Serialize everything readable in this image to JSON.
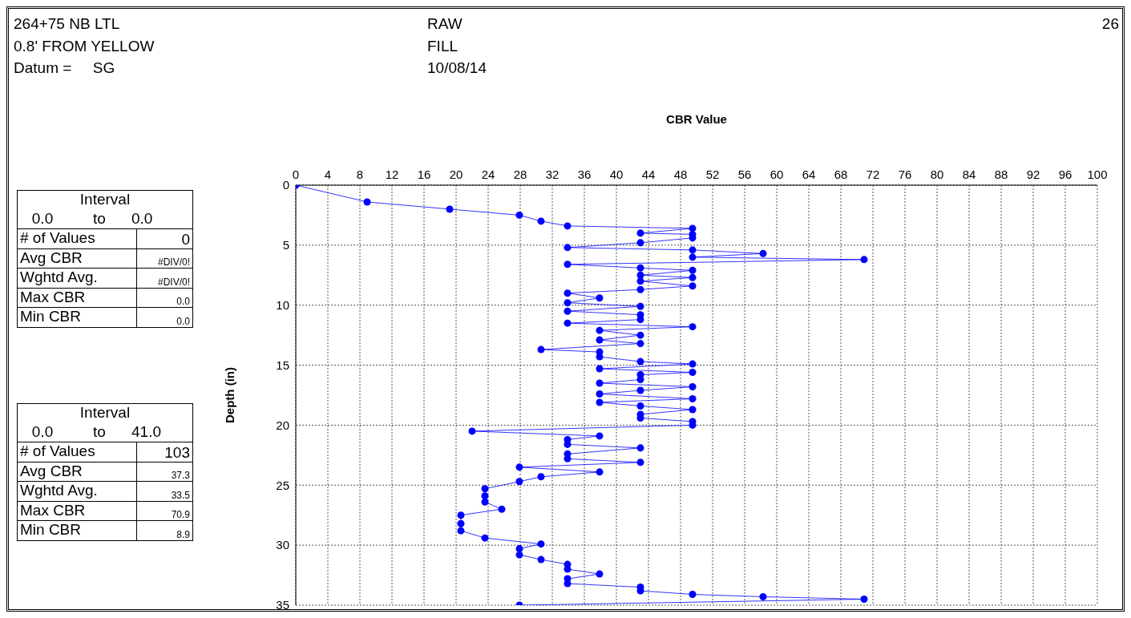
{
  "chart_data": {
    "type": "line",
    "xlabel": "CBR Value",
    "ylabel": "Depth (in)",
    "annotations": [
      "264+75 NB LTL",
      "0.8' FROM YELLOW",
      "Datum =     SG",
      "RAW",
      "FILL",
      "10/08/14",
      "26",
      "Interval",
      "0.0",
      "to",
      "0.0",
      "# of Values",
      "0",
      "Avg CBR",
      "#DIV/0!",
      "Wghtd Avg.",
      "#DIV/0!",
      "Max CBR",
      "0.0",
      "Min CBR",
      "0.0",
      "Interval",
      "0.0",
      "to",
      "41.0",
      "# of Values",
      "103",
      "Avg CBR",
      "37.3",
      "Wghtd Avg.",
      "33.5",
      "Max CBR",
      "70.9",
      "Min CBR",
      "8.9"
    ],
    "series": [
      {
        "color": "#0000ff",
        "x": [
          0,
          8.9,
          19.2,
          27.9,
          30.6,
          33.9,
          49.5,
          43.0,
          49.5,
          49.5,
          43.0,
          33.9,
          49.5,
          58.3,
          49.5,
          70.9,
          33.9,
          43.0,
          49.5,
          43.0,
          49.5,
          43.0,
          49.5,
          43.0,
          33.9,
          37.9,
          33.9,
          43.0,
          33.9,
          43.0,
          43.0,
          33.9,
          49.5,
          37.9,
          43.0,
          37.9,
          43.0,
          30.6,
          37.9,
          37.9,
          43.0,
          49.5,
          37.9,
          49.5,
          43.0,
          43.0,
          37.9,
          49.5,
          43.0,
          37.9,
          49.5,
          37.9,
          43.0,
          49.5,
          43.0,
          43.0,
          49.5,
          49.5,
          22.0,
          37.9,
          33.9,
          33.9,
          43.0,
          33.9,
          33.9,
          43.0,
          27.9,
          37.9,
          30.6,
          27.9,
          23.6,
          23.6,
          23.6,
          25.7,
          20.6,
          20.6,
          20.6,
          23.6,
          30.6,
          27.9,
          27.9,
          30.6,
          33.9,
          33.9,
          37.9,
          33.9,
          33.9,
          43.0,
          43.0,
          49.5,
          58.3,
          70.9,
          27.9
        ],
        "values": [
          0,
          1.4,
          2.0,
          2.5,
          3.0,
          3.4,
          3.6,
          4.0,
          4.1,
          4.4,
          4.8,
          5.2,
          5.4,
          5.7,
          6.0,
          6.2,
          6.6,
          6.9,
          7.1,
          7.5,
          7.7,
          8.0,
          8.4,
          8.7,
          9.0,
          9.4,
          9.8,
          10.1,
          10.5,
          10.8,
          11.2,
          11.5,
          11.8,
          12.1,
          12.5,
          12.9,
          13.2,
          13.7,
          13.9,
          14.3,
          14.7,
          14.9,
          15.3,
          15.6,
          15.8,
          16.2,
          16.5,
          16.8,
          17.1,
          17.4,
          17.8,
          18.1,
          18.4,
          18.7,
          19.1,
          19.4,
          19.7,
          20.0,
          20.5,
          20.9,
          21.2,
          21.6,
          21.9,
          22.4,
          22.8,
          23.1,
          23.5,
          23.9,
          24.3,
          24.7,
          25.3,
          25.9,
          26.4,
          27.0,
          27.5,
          28.2,
          28.8,
          29.4,
          29.9,
          30.3,
          30.8,
          31.2,
          31.6,
          32.0,
          32.4,
          32.8,
          33.2,
          33.5,
          33.8,
          34.1,
          34.3,
          34.5,
          35.0
        ]
      }
    ],
    "xlim": [
      0,
      100
    ],
    "xticks": [
      0,
      4,
      8,
      12,
      16,
      20,
      24,
      28,
      32,
      36,
      40,
      44,
      48,
      52,
      56,
      60,
      64,
      68,
      72,
      76,
      80,
      84,
      88,
      92,
      96,
      100
    ],
    "ylim": [
      35,
      0
    ],
    "yticks": [
      0,
      5,
      10,
      15,
      20,
      25,
      30,
      35
    ],
    "grid": true,
    "marker": "circle",
    "line_style": "solid"
  }
}
